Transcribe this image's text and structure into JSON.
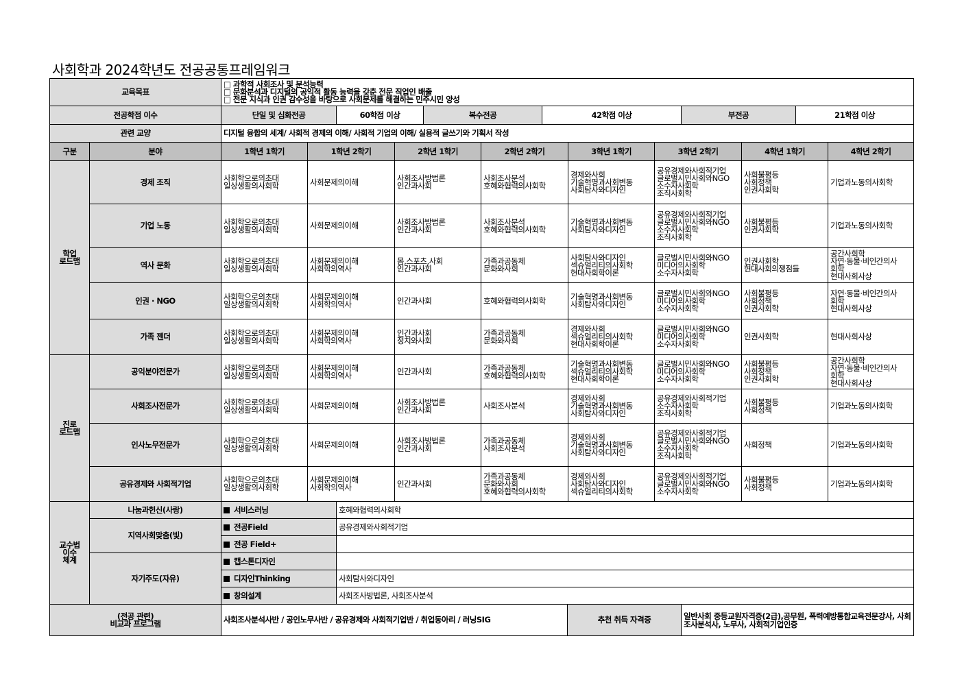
{
  "title": "사회학과 2024학년도 전공공통프레임워크",
  "goals": {
    "label": "교육목표",
    "items": [
      "□ 과학적 사회조사 및 분석능력",
      "□ 문화분석과 디지털의 공익적 활동 능력을 갖춘 전문 직업인 배출",
      "□ 전문 지식과 인권 감수성을 바탕으로 사회문제를 해결하는 민주시민 양성"
    ]
  },
  "credits": {
    "label": "전공학점 이수",
    "single_label": "단일 및 심화전공",
    "single_value": "60학점 이상",
    "double_label": "복수전공",
    "double_value": "42학점 이상",
    "minor_label": "부전공",
    "minor_value": "21학점 이상"
  },
  "liberal": {
    "label": "관련 교양",
    "value": "디지털 융합의 세계/ 사회적 경제의 이해/ 사회적 기업의 이해/ 실용적 글쓰기와 기획서 작성"
  },
  "header": [
    "구분",
    "분야",
    "1학년 1학기",
    "1학년 2학기",
    "2학년 1학기",
    "2학년 2학기",
    "3학년 1학기",
    "3학년 2학기",
    "4학년 1학기",
    "4학년 2학기"
  ],
  "groups": [
    {
      "label": [
        "학업",
        "로드맵"
      ],
      "rows": [
        {
          "field": "경제 조직",
          "cells": [
            [
              "사회학으로의초대",
              "일상생활의사회학"
            ],
            [
              "사회문제의이해"
            ],
            [
              "사회조사방법론",
              "인간과사회"
            ],
            [
              "사회조사분석",
              "호혜와협력의사회학"
            ],
            [
              "경제와사회",
              "기술혁명과사회변동",
              "사회탐사와디자인"
            ],
            [
              "공유경제와사회적기업",
              "글로벌시민사회와NGO",
              "소수자사회학",
              "조직사회학"
            ],
            [
              "사회불평등",
              "사회정책",
              "인권사회학"
            ],
            [
              "기업과노동의사회학"
            ]
          ]
        },
        {
          "field": "기업 노동",
          "cells": [
            [
              "사회학으로의초대",
              "일상생활의사회학"
            ],
            [
              "사회문제의이해"
            ],
            [
              "사회조사방법론",
              "인간과사회"
            ],
            [
              "사회조사분석",
              "호혜와협력의사회학"
            ],
            [
              "기술혁명과사회변동",
              "사회탐사와디자인"
            ],
            [
              "공유경제와사회적기업",
              "글로벌시민사회와NGO",
              "소수자사회학",
              "조직사회학"
            ],
            [
              "사회불평등",
              "인권사회학"
            ],
            [
              "기업과노동의사회학"
            ]
          ]
        },
        {
          "field": "역사 문화",
          "cells": [
            [
              "사회학으로의초대",
              "일상생활의사회학"
            ],
            [
              "사회문제의이해",
              "사회학의역사"
            ],
            [
              "몸,스포츠,사회",
              "인간과사회"
            ],
            [
              "가족과공동체",
              "문화와사회"
            ],
            [
              "사회탐사와디자인",
              "섹슈얼리티의사회학",
              "현대사회학이론"
            ],
            [
              "글로벌시민사회와NGO",
              "미디어의사회학",
              "소수자사회학"
            ],
            [
              "인권사회학",
              "현대사회의쟁점들"
            ],
            [
              "공간사회학",
              "자연·동물·비인간의사",
              "회학",
              "현대사회사상"
            ]
          ]
        },
        {
          "field": "인권 · NGO",
          "cells": [
            [
              "사회학으로의초대",
              "일상생활의사회학"
            ],
            [
              "사회문제의이해",
              "사회학의역사"
            ],
            [
              "인간과사회"
            ],
            [
              "호혜와협력의사회학"
            ],
            [
              "기술혁명과사회변동",
              "사회탐사와디자인"
            ],
            [
              "글로벌시민사회와NGO",
              "미디어의사회학",
              "소수자사회학"
            ],
            [
              "사회불평등",
              "사회정책",
              "인권사회학"
            ],
            [
              "자연·동물·비인간의사",
              "회학",
              "현대사회사상"
            ]
          ]
        },
        {
          "field": "가족 젠더",
          "cells": [
            [
              "사회학으로의초대",
              "일상생활의사회학"
            ],
            [
              "사회문제의이해",
              "사회학의역사"
            ],
            [
              "인간과사회",
              "정치와사회"
            ],
            [
              "가족과공동체",
              "문화와사회"
            ],
            [
              "경제와사회",
              "섹슈얼리티의사회학",
              "현대사회학이론"
            ],
            [
              "글로벌시민사회와NGO",
              "미디어의사회학",
              "소수자사회학"
            ],
            [
              "인권사회학"
            ],
            [
              "현대사회사상"
            ]
          ]
        }
      ]
    },
    {
      "label": [
        "진로",
        "로드맵"
      ],
      "rows": [
        {
          "field": "공익분야전문가",
          "cells": [
            [
              "사회학으로의초대",
              "일상생활의사회학"
            ],
            [
              "사회문제의이해",
              "사회학의역사"
            ],
            [
              "인간과사회"
            ],
            [
              "가족과공동체",
              "호혜와협력의사회학"
            ],
            [
              "기술혁명과사회변동",
              "섹슈얼리티의사회학",
              "현대사회학이론"
            ],
            [
              "글로벌시민사회와NGO",
              "미디어의사회학",
              "소수자사회학"
            ],
            [
              "사회불평등",
              "사회정책",
              "인권사회학"
            ],
            [
              "공간사회학",
              "자연·동물·비인간의사",
              "회학",
              "현대사회사상"
            ]
          ]
        },
        {
          "field": "사회조사전문가",
          "cells": [
            [
              "사회학으로의초대",
              "일상생활의사회학"
            ],
            [
              "사회문제의이해"
            ],
            [
              "사회조사방법론",
              "인간과사회"
            ],
            [
              "사회조사분석"
            ],
            [
              "경제와사회",
              "기술혁명과사회변동",
              "사회탐사와디자인"
            ],
            [
              "공유경제와사회적기업",
              "소수자사회학",
              "조직사회학"
            ],
            [
              "사회불평등",
              "사회정책"
            ],
            [
              "기업과노동의사회학"
            ]
          ]
        },
        {
          "field": "인사노무전문가",
          "cells": [
            [
              "사회학으로의초대",
              "일상생활의사회학"
            ],
            [
              "사회문제의이해"
            ],
            [
              "사회조사방법론",
              "인간과사회"
            ],
            [
              "가족과공동체",
              "사회조사분석"
            ],
            [
              "경제와사회",
              "기술혁명과사회변동",
              "사회탐사와디자인"
            ],
            [
              "공유경제와사회적기업",
              "글로벌시민사회와NGO",
              "소수자사회학",
              "조직사회학"
            ],
            [
              "사회정책"
            ],
            [
              "기업과노동의사회학"
            ]
          ]
        },
        {
          "field": "공유경제와 사회적기업",
          "cells": [
            [
              "사회학으로의초대",
              "일상생활의사회학"
            ],
            [
              "사회문제의이해",
              "사회학의역사"
            ],
            [
              "인간과사회"
            ],
            [
              "가족과공동체",
              "문화와사회",
              "호혜와협력의사회학"
            ],
            [
              "경제와사회",
              "사회탐사와디자인",
              "섹슈얼리티의사회학"
            ],
            [
              "공유경제와사회적기업",
              "글로벌시민사회와NGO",
              "소수자사회학"
            ],
            [
              "사회불평등",
              "사회정책"
            ],
            [
              "기업과노동의사회학"
            ]
          ]
        }
      ]
    }
  ],
  "pedagogy": {
    "label": [
      "교수법",
      "이수",
      "체계"
    ],
    "areas": [
      {
        "name": "나눔과헌신(사랑)",
        "items": [
          {
            "name": "서비스러닝",
            "value": "호혜와협력의사회학"
          }
        ]
      },
      {
        "name": "지역사회맞춤(빛)",
        "items": [
          {
            "name": "전공Field",
            "value": "공유경제와사회적기업"
          },
          {
            "name": "전공 Field+",
            "value": ""
          }
        ]
      },
      {
        "name": "자기주도(자유)",
        "items": [
          {
            "name": "캡스톤디자인",
            "value": ""
          },
          {
            "name": "디자인Thinking",
            "value": "사회탐사와디자인"
          },
          {
            "name": "창의설계",
            "value": "사회조사방법론, 사회조사분석"
          }
        ]
      }
    ]
  },
  "bottom": {
    "program_label": [
      "(전공 관련)",
      "비교과 프로그램"
    ],
    "program_value": "사회조사분석사반 / 공인노무사반 / 공유경제와 사회적기업반 / 취업동아리 / 러닝SIG",
    "cert_label": "추천 취득 자격증",
    "cert_value": "일반사회 중등교원자격증(2급),공무원, 폭력예방통합교육전문강사, 사회조사분석사, 노무사, 사회적기업인증"
  },
  "colors": {
    "label_bg": "#dcdcdc",
    "header_bg": "#c0c0c0"
  }
}
